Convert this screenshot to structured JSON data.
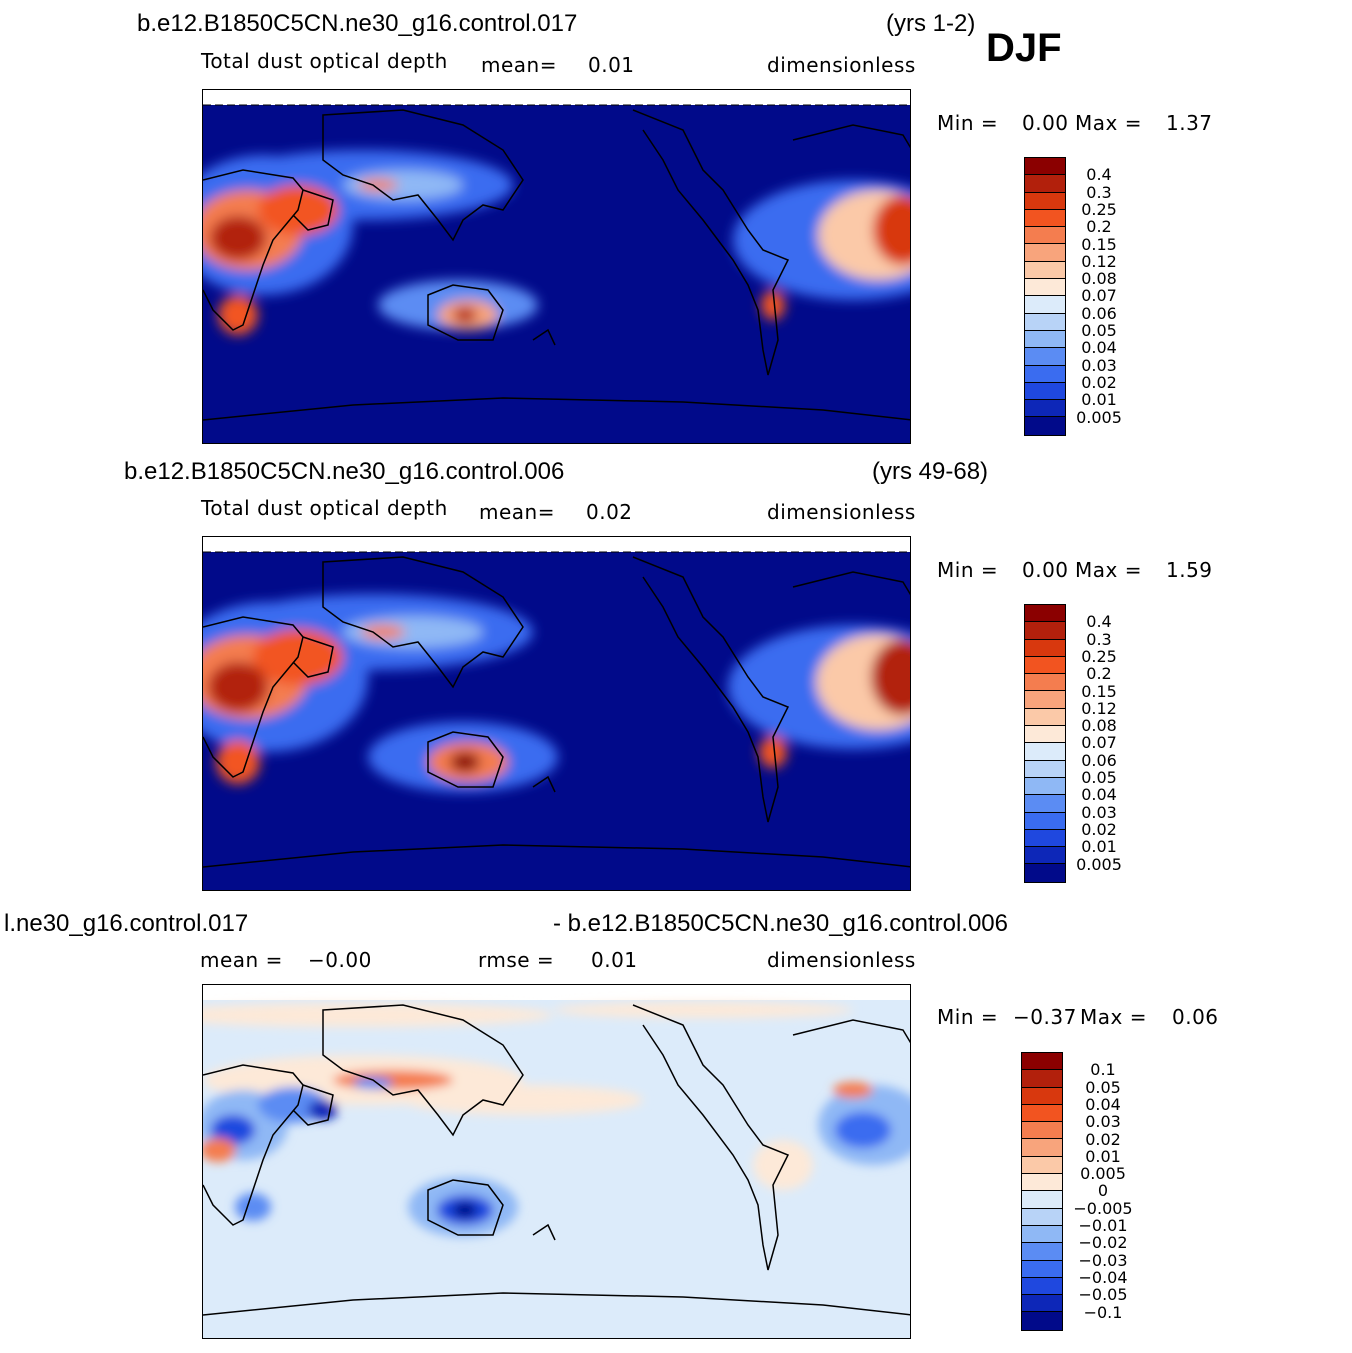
{
  "season": "DJF",
  "panels": [
    {
      "case": "b.e12.B1850C5CN.ne30_g16.control.017",
      "years": "(yrs 1-2)",
      "variable": "Total dust optical depth",
      "stat1_label": "mean=",
      "stat1_value": "0.01",
      "units": "dimensionless",
      "min_label": "Min =",
      "min_value": "0.00",
      "max_label": "Max =",
      "max_value": "1.37"
    },
    {
      "case": "b.e12.B1850C5CN.ne30_g16.control.006",
      "years": "(yrs 49-68)",
      "variable": "Total dust optical depth",
      "stat1_label": "mean=",
      "stat1_value": "0.02",
      "units": "dimensionless",
      "min_label": "Min =",
      "min_value": "0.00",
      "max_label": "Max =",
      "max_value": "1.59"
    },
    {
      "case_left": "l.ne30_g16.control.017",
      "case_right": "- b.e12.B1850C5CN.ne30_g16.control.006",
      "stat1_label": "mean =",
      "stat1_value": "−0.00",
      "stat2_label": "rmse =",
      "stat2_value": "0.01",
      "units": "dimensionless",
      "min_label": "Min =",
      "min_value": "−0.37",
      "max_label": "Max =",
      "max_value": "0.06"
    }
  ],
  "colorbar_abs": {
    "labels": [
      "0.4",
      "0.3",
      "0.25",
      "0.2",
      "0.15",
      "0.12",
      "0.08",
      "0.07",
      "0.06",
      "0.05",
      "0.04",
      "0.03",
      "0.02",
      "0.01",
      "0.005"
    ],
    "colors": [
      "#8b0000",
      "#b2200c",
      "#d8380e",
      "#f25420",
      "#f47d4f",
      "#f8a47c",
      "#fbc9a8",
      "#fde9d8",
      "#dcebfa",
      "#b8d3f7",
      "#8fb8f5",
      "#5b8cf3",
      "#3a6cf0",
      "#1f48df",
      "#0d27b8",
      "#010a8a"
    ]
  },
  "colorbar_diff": {
    "labels": [
      "0.1",
      "0.05",
      "0.04",
      "0.03",
      "0.02",
      "0.01",
      "0.005",
      "0",
      "−0.005",
      "−0.01",
      "−0.02",
      "−0.03",
      "−0.04",
      "−0.05",
      "−0.1"
    ],
    "colors": [
      "#8b0000",
      "#b2200c",
      "#d8380e",
      "#f25420",
      "#f47d4f",
      "#f8a47c",
      "#fbc9a8",
      "#fde9d8",
      "#dcebfa",
      "#b8d3f7",
      "#8fb8f5",
      "#5b8cf3",
      "#3a6cf0",
      "#1f48df",
      "#0d27b8",
      "#010a8a"
    ]
  }
}
